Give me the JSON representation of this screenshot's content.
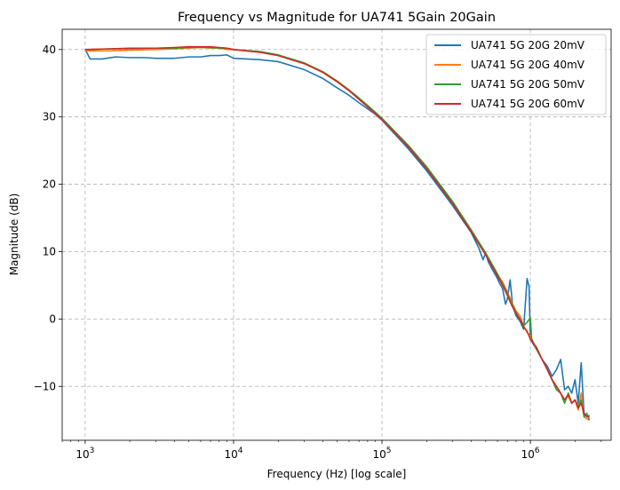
{
  "chart_data": {
    "type": "line",
    "title": "Frequency vs Magnitude for UA741 5Gain 20Gain",
    "xlabel": "Frequency (Hz) [log scale]",
    "ylabel": "Magnitude (dB)",
    "xscale": "log",
    "xlim": [
      700,
      3500000
    ],
    "ylim": [
      -18,
      43
    ],
    "x_ticks": [
      {
        "value": 1000,
        "base": "10",
        "exp": "3"
      },
      {
        "value": 10000,
        "base": "10",
        "exp": "4"
      },
      {
        "value": 100000,
        "base": "10",
        "exp": "5"
      },
      {
        "value": 1000000,
        "base": "10",
        "exp": "6"
      }
    ],
    "y_ticks": [
      {
        "value": -10,
        "label": "−10"
      },
      {
        "value": 0,
        "label": "0"
      },
      {
        "value": 10,
        "label": "10"
      },
      {
        "value": 20,
        "label": "20"
      },
      {
        "value": 30,
        "label": "30"
      },
      {
        "value": 40,
        "label": "40"
      }
    ],
    "grid": true,
    "legend_position": "top-right",
    "series": [
      {
        "name": "UA741 5G 20G 20mV",
        "color": "#1f77b4",
        "points": [
          [
            1000,
            40
          ],
          [
            1080,
            38.6
          ],
          [
            1300,
            38.6
          ],
          [
            1600,
            38.9
          ],
          [
            2000,
            38.8
          ],
          [
            2500,
            38.8
          ],
          [
            3000,
            38.7
          ],
          [
            4000,
            38.7
          ],
          [
            5000,
            38.9
          ],
          [
            6000,
            38.9
          ],
          [
            7000,
            39.1
          ],
          [
            8000,
            39.1
          ],
          [
            9000,
            39.2
          ],
          [
            10000,
            38.7
          ],
          [
            15000,
            38.5
          ],
          [
            20000,
            38.2
          ],
          [
            30000,
            37
          ],
          [
            40000,
            35.7
          ],
          [
            50000,
            34.3
          ],
          [
            60000,
            33.2
          ],
          [
            70000,
            32.1
          ],
          [
            80000,
            31.2
          ],
          [
            90000,
            30.4
          ],
          [
            100000,
            29.5
          ],
          [
            150000,
            25.3
          ],
          [
            200000,
            22
          ],
          [
            300000,
            16.8
          ],
          [
            400000,
            12.8
          ],
          [
            450000,
            10.5
          ],
          [
            480000,
            8.8
          ],
          [
            500000,
            9.8
          ],
          [
            520000,
            8.5
          ],
          [
            550000,
            7.5
          ],
          [
            600000,
            6
          ],
          [
            620000,
            5.3
          ],
          [
            650000,
            4.5
          ],
          [
            680000,
            2.2
          ],
          [
            700000,
            3
          ],
          [
            730000,
            5.8
          ],
          [
            760000,
            2
          ],
          [
            800000,
            0.5
          ],
          [
            850000,
            -0.3
          ],
          [
            900000,
            -1.5
          ],
          [
            950000,
            6
          ],
          [
            980000,
            4.8
          ],
          [
            1000000,
            -3
          ],
          [
            1100000,
            -4.5
          ],
          [
            1200000,
            -6
          ],
          [
            1300000,
            -7
          ],
          [
            1400000,
            -8.5
          ],
          [
            1500000,
            -7.5
          ],
          [
            1600000,
            -6
          ],
          [
            1700000,
            -10.5
          ],
          [
            1800000,
            -10
          ],
          [
            1900000,
            -11
          ],
          [
            2000000,
            -9
          ],
          [
            2100000,
            -12.5
          ],
          [
            2200000,
            -6.5
          ],
          [
            2300000,
            -14
          ],
          [
            2400000,
            -14.5
          ],
          [
            2500000,
            -14.3
          ]
        ]
      },
      {
        "name": "UA741 5G 20G 40mV",
        "color": "#ff7f0e",
        "points": [
          [
            1000,
            39.8
          ],
          [
            1500,
            39.8
          ],
          [
            2000,
            39.9
          ],
          [
            3000,
            40
          ],
          [
            4000,
            40.1
          ],
          [
            5000,
            40.2
          ],
          [
            6000,
            40.3
          ],
          [
            7000,
            40.2
          ],
          [
            8000,
            40.2
          ],
          [
            9000,
            40
          ],
          [
            10000,
            40
          ],
          [
            15000,
            39.6
          ],
          [
            20000,
            39.1
          ],
          [
            30000,
            37.9
          ],
          [
            40000,
            36.6
          ],
          [
            50000,
            35.2
          ],
          [
            60000,
            33.9
          ],
          [
            70000,
            32.6
          ],
          [
            80000,
            31.5
          ],
          [
            90000,
            30.5
          ],
          [
            100000,
            29.6
          ],
          [
            150000,
            25.6
          ],
          [
            200000,
            22.4
          ],
          [
            300000,
            17.2
          ],
          [
            400000,
            13
          ],
          [
            500000,
            9.6
          ],
          [
            600000,
            6.6
          ],
          [
            650000,
            5.5
          ],
          [
            700000,
            4
          ],
          [
            750000,
            2.5
          ],
          [
            800000,
            1.2
          ],
          [
            850000,
            0.5
          ],
          [
            900000,
            -1
          ],
          [
            950000,
            -2
          ],
          [
            1000000,
            -2.5
          ],
          [
            1100000,
            -4.5
          ],
          [
            1200000,
            -6
          ],
          [
            1300000,
            -7.5
          ],
          [
            1400000,
            -9
          ],
          [
            1500000,
            -10
          ],
          [
            1600000,
            -11
          ],
          [
            1700000,
            -12
          ],
          [
            1800000,
            -11.5
          ],
          [
            1900000,
            -12.5
          ],
          [
            2000000,
            -12
          ],
          [
            2100000,
            -13.5
          ],
          [
            2200000,
            -11
          ],
          [
            2300000,
            -14.5
          ],
          [
            2400000,
            -14.8
          ],
          [
            2500000,
            -15
          ]
        ]
      },
      {
        "name": "UA741 5G 20G 50mV",
        "color": "#2ca02c",
        "points": [
          [
            1000,
            40
          ],
          [
            1500,
            40.1
          ],
          [
            2000,
            40.1
          ],
          [
            3000,
            40.2
          ],
          [
            4000,
            40.2
          ],
          [
            5000,
            40.3
          ],
          [
            6000,
            40.3
          ],
          [
            7000,
            40.3
          ],
          [
            8000,
            40.2
          ],
          [
            9000,
            40.2
          ],
          [
            10000,
            40
          ],
          [
            15000,
            39.7
          ],
          [
            20000,
            39.2
          ],
          [
            30000,
            38
          ],
          [
            40000,
            36.7
          ],
          [
            50000,
            35.3
          ],
          [
            60000,
            34
          ],
          [
            70000,
            32.8
          ],
          [
            80000,
            31.7
          ],
          [
            90000,
            30.7
          ],
          [
            100000,
            29.8
          ],
          [
            150000,
            25.8
          ],
          [
            200000,
            22.6
          ],
          [
            300000,
            17.4
          ],
          [
            400000,
            13.2
          ],
          [
            500000,
            9.8
          ],
          [
            600000,
            6.7
          ],
          [
            650000,
            5.2
          ],
          [
            700000,
            3.8
          ],
          [
            750000,
            2.2
          ],
          [
            800000,
            1
          ],
          [
            850000,
            0
          ],
          [
            900000,
            -1
          ],
          [
            950000,
            -0.5
          ],
          [
            1000000,
            0.2
          ],
          [
            1020000,
            -3
          ],
          [
            1100000,
            -4.5
          ],
          [
            1200000,
            -6
          ],
          [
            1300000,
            -7.5
          ],
          [
            1400000,
            -9
          ],
          [
            1500000,
            -10.5
          ],
          [
            1600000,
            -11
          ],
          [
            1700000,
            -12.5
          ],
          [
            1800000,
            -11
          ],
          [
            1900000,
            -12.5
          ],
          [
            2000000,
            -12
          ],
          [
            2100000,
            -13
          ],
          [
            2200000,
            -12
          ],
          [
            2300000,
            -14.5
          ],
          [
            2400000,
            -14
          ],
          [
            2500000,
            -15
          ]
        ]
      },
      {
        "name": "UA741 5G 20G 60mV",
        "color": "#d62728",
        "points": [
          [
            1000,
            40
          ],
          [
            1500,
            40.1
          ],
          [
            2000,
            40.2
          ],
          [
            3000,
            40.2
          ],
          [
            4000,
            40.3
          ],
          [
            5000,
            40.4
          ],
          [
            6000,
            40.4
          ],
          [
            7000,
            40.4
          ],
          [
            8000,
            40.3
          ],
          [
            9000,
            40.2
          ],
          [
            10000,
            40
          ],
          [
            15000,
            39.6
          ],
          [
            20000,
            39.1
          ],
          [
            30000,
            37.9
          ],
          [
            40000,
            36.6
          ],
          [
            50000,
            35.2
          ],
          [
            60000,
            33.9
          ],
          [
            70000,
            32.6
          ],
          [
            80000,
            31.5
          ],
          [
            90000,
            30.5
          ],
          [
            100000,
            29.6
          ],
          [
            150000,
            25.6
          ],
          [
            200000,
            22.3
          ],
          [
            300000,
            17.1
          ],
          [
            400000,
            12.9
          ],
          [
            500000,
            9.5
          ],
          [
            600000,
            6.4
          ],
          [
            650000,
            5
          ],
          [
            700000,
            3.5
          ],
          [
            750000,
            2
          ],
          [
            800000,
            0.8
          ],
          [
            850000,
            0
          ],
          [
            900000,
            -1.2
          ],
          [
            950000,
            -1.8
          ],
          [
            1000000,
            -3
          ],
          [
            1100000,
            -4.2
          ],
          [
            1200000,
            -6
          ],
          [
            1300000,
            -7.5
          ],
          [
            1400000,
            -9
          ],
          [
            1500000,
            -10
          ],
          [
            1600000,
            -11
          ],
          [
            1700000,
            -12
          ],
          [
            1800000,
            -11.2
          ],
          [
            1900000,
            -12.5
          ],
          [
            2000000,
            -12
          ],
          [
            2100000,
            -13.2
          ],
          [
            2200000,
            -12.5
          ],
          [
            2300000,
            -14
          ],
          [
            2400000,
            -14.5
          ],
          [
            2500000,
            -14.5
          ]
        ]
      }
    ]
  }
}
